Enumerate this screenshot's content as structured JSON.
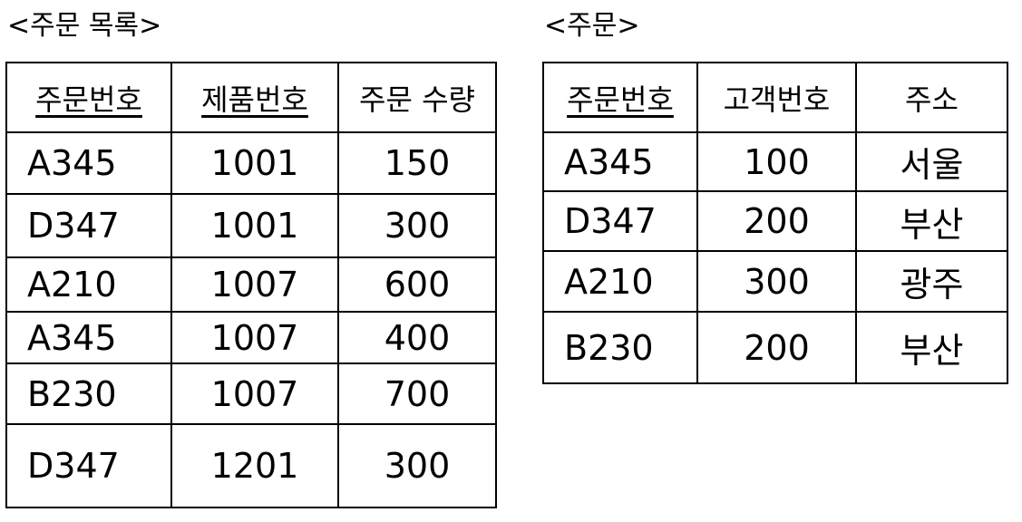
{
  "left_table": {
    "caption": "<주문 목록>",
    "headers": [
      "주문번호",
      "제품번호",
      "주문 수량"
    ],
    "rows": [
      [
        "A345",
        "1001",
        "150"
      ],
      [
        "D347",
        "1001",
        "300"
      ],
      [
        "A210",
        "1007",
        "600"
      ],
      [
        "A345",
        "1007",
        "400"
      ],
      [
        "B230",
        "1007",
        "700"
      ],
      [
        "D347",
        "1201",
        "300"
      ]
    ]
  },
  "right_table": {
    "caption": "<주문>",
    "headers": [
      "주문번호",
      "고객번호",
      "주소"
    ],
    "rows": [
      [
        "A345",
        "100",
        "서울"
      ],
      [
        "D347",
        "200",
        "부산"
      ],
      [
        "A210",
        "300",
        "광주"
      ],
      [
        "B230",
        "200",
        "부산"
      ]
    ]
  }
}
